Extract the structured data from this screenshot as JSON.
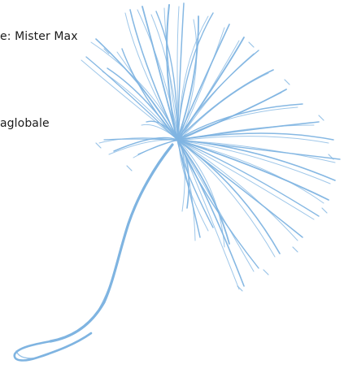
{
  "text": {
    "line1": "e: Mister Max",
    "line2": "aglobale"
  },
  "illustration": {
    "name": "dandelion-seed-illustration",
    "stroke_color": "#7fb4e1"
  }
}
